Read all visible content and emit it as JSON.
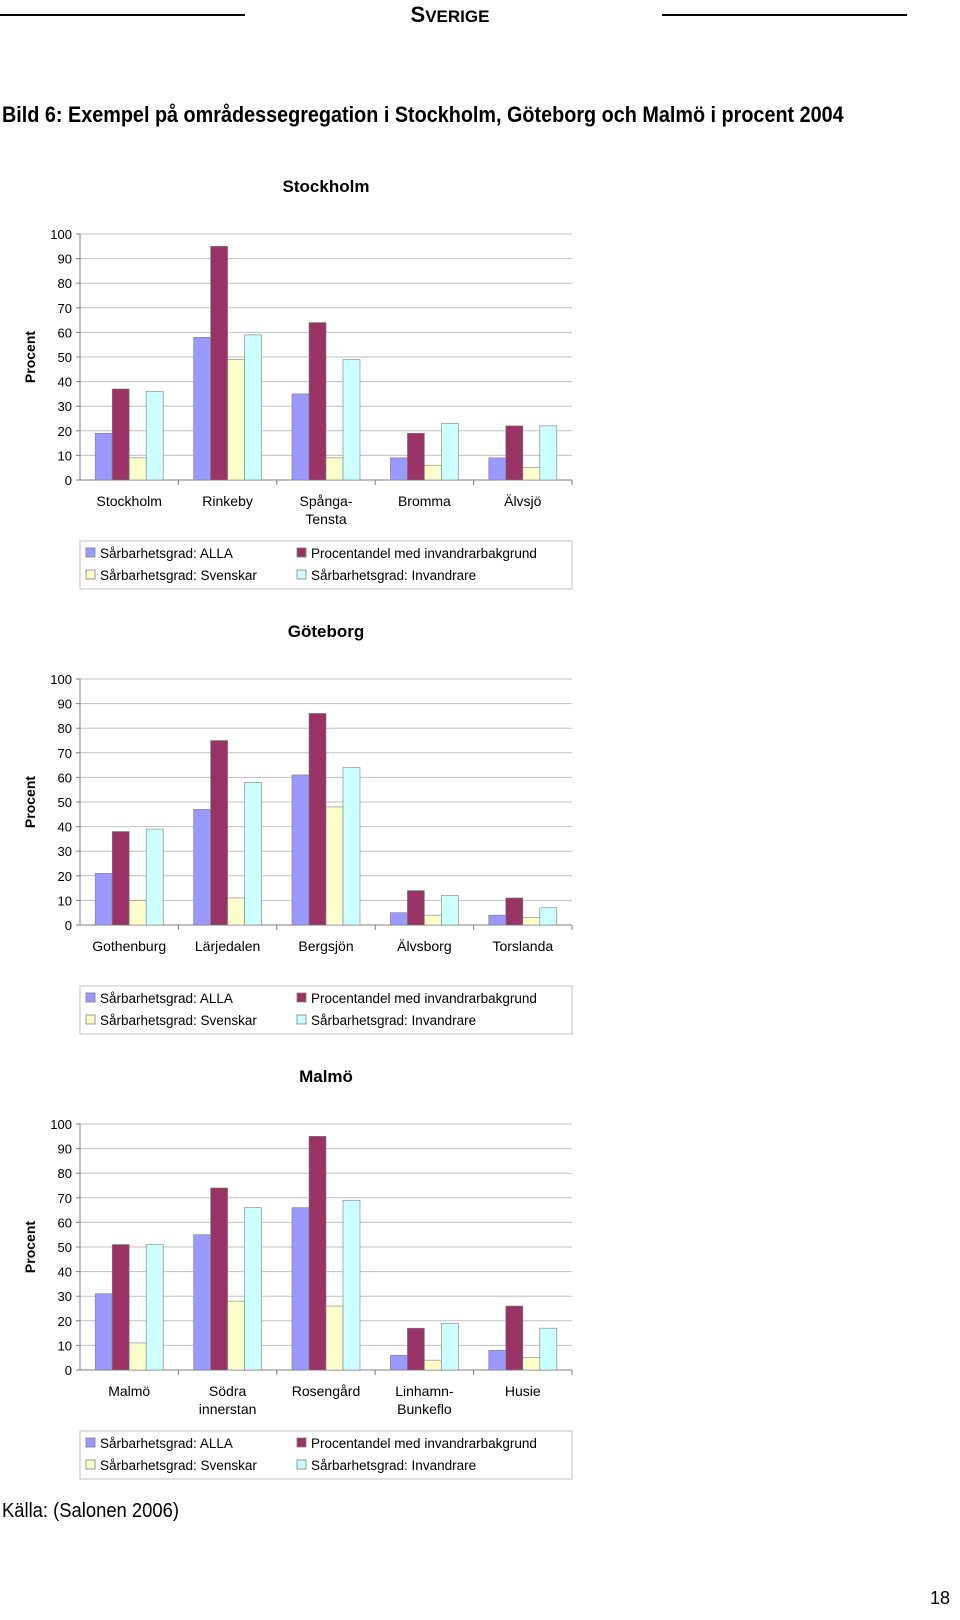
{
  "header": {
    "cap": "S",
    "rest": "VERIGE"
  },
  "title": "Bild 6: Exempel på områdessegregation i Stockholm, Göteborg och Malmö i procent 2004",
  "source": "Källa: (Salonen 2006)",
  "page_number": "18",
  "colors": {
    "alla": "#9999ff",
    "procentandel": "#993366",
    "svenskar": "#ffffcc",
    "invandrare": "#ccffff",
    "gridline": "#c0c0c0",
    "axis": "#808080"
  },
  "chart_data": [
    {
      "type": "bar",
      "title": "Stockholm",
      "ylabel": "Procent",
      "ylim": [
        0,
        100
      ],
      "yticks": [
        "0",
        "10",
        "20",
        "30",
        "40",
        "50",
        "60",
        "70",
        "80",
        "90",
        "100"
      ],
      "grid": true,
      "legend": "bottom",
      "categories": [
        [
          "Stockholm"
        ],
        [
          "Rinkeby"
        ],
        [
          "Spånga-",
          "Tensta"
        ],
        [
          "Bromma"
        ],
        [
          "Älvsjö"
        ]
      ],
      "series": [
        {
          "name": "Sårbarhetsgrad: ALLA",
          "color": "#9999ff",
          "values": [
            19,
            58,
            35,
            9,
            9
          ]
        },
        {
          "name": "Procentandel med invandrarbakgrund",
          "color": "#993366",
          "values": [
            37,
            95,
            64,
            19,
            22
          ]
        },
        {
          "name": "Sårbarhetsgrad: Svenskar",
          "color": "#ffffcc",
          "values": [
            9,
            49,
            9,
            6,
            5
          ]
        },
        {
          "name": "Sårbarhetsgrad: Invandrare",
          "color": "#ccffff",
          "values": [
            36,
            59,
            49,
            23,
            22
          ]
        }
      ]
    },
    {
      "type": "bar",
      "title": "Göteborg",
      "ylabel": "Procent",
      "ylim": [
        0,
        100
      ],
      "yticks": [
        "0",
        "10",
        "20",
        "30",
        "40",
        "50",
        "60",
        "70",
        "80",
        "90",
        "100"
      ],
      "grid": true,
      "legend": "bottom",
      "categories": [
        [
          "Gothenburg"
        ],
        [
          "Lärjedalen"
        ],
        [
          "Bergsjön"
        ],
        [
          "Älvsborg"
        ],
        [
          "Torslanda"
        ]
      ],
      "series": [
        {
          "name": "Sårbarhetsgrad: ALLA",
          "color": "#9999ff",
          "values": [
            21,
            47,
            61,
            5,
            4
          ]
        },
        {
          "name": "Procentandel med invandrarbakgrund",
          "color": "#993366",
          "values": [
            38,
            75,
            86,
            14,
            11
          ]
        },
        {
          "name": "Sårbarhetsgrad: Svenskar",
          "color": "#ffffcc",
          "values": [
            10,
            11,
            48,
            4,
            3
          ]
        },
        {
          "name": "Sårbarhetsgrad: Invandrare",
          "color": "#ccffff",
          "values": [
            39,
            58,
            64,
            12,
            7
          ]
        }
      ]
    },
    {
      "type": "bar",
      "title": "Malmö",
      "ylabel": "Procent",
      "ylim": [
        0,
        100
      ],
      "yticks": [
        "0",
        "10",
        "20",
        "30",
        "40",
        "50",
        "60",
        "70",
        "80",
        "90",
        "100"
      ],
      "grid": true,
      "legend": "bottom",
      "categories": [
        [
          "Malmö"
        ],
        [
          "Södra",
          "innerstan"
        ],
        [
          "Rosengård"
        ],
        [
          "Linhamn-",
          "Bunkeflo"
        ],
        [
          "Husie"
        ]
      ],
      "series": [
        {
          "name": "Sårbarhetsgrad: ALLA",
          "color": "#9999ff",
          "values": [
            31,
            55,
            66,
            6,
            8
          ]
        },
        {
          "name": "Procentandel med invandrarbakgrund",
          "color": "#993366",
          "values": [
            51,
            74,
            95,
            17,
            26
          ]
        },
        {
          "name": "Sårbarhetsgrad: Svenskar",
          "color": "#ffffcc",
          "values": [
            11,
            28,
            26,
            4,
            5
          ]
        },
        {
          "name": "Sårbarhetsgrad: Invandrare",
          "color": "#ccffff",
          "values": [
            51,
            66,
            69,
            19,
            17
          ]
        }
      ]
    }
  ]
}
